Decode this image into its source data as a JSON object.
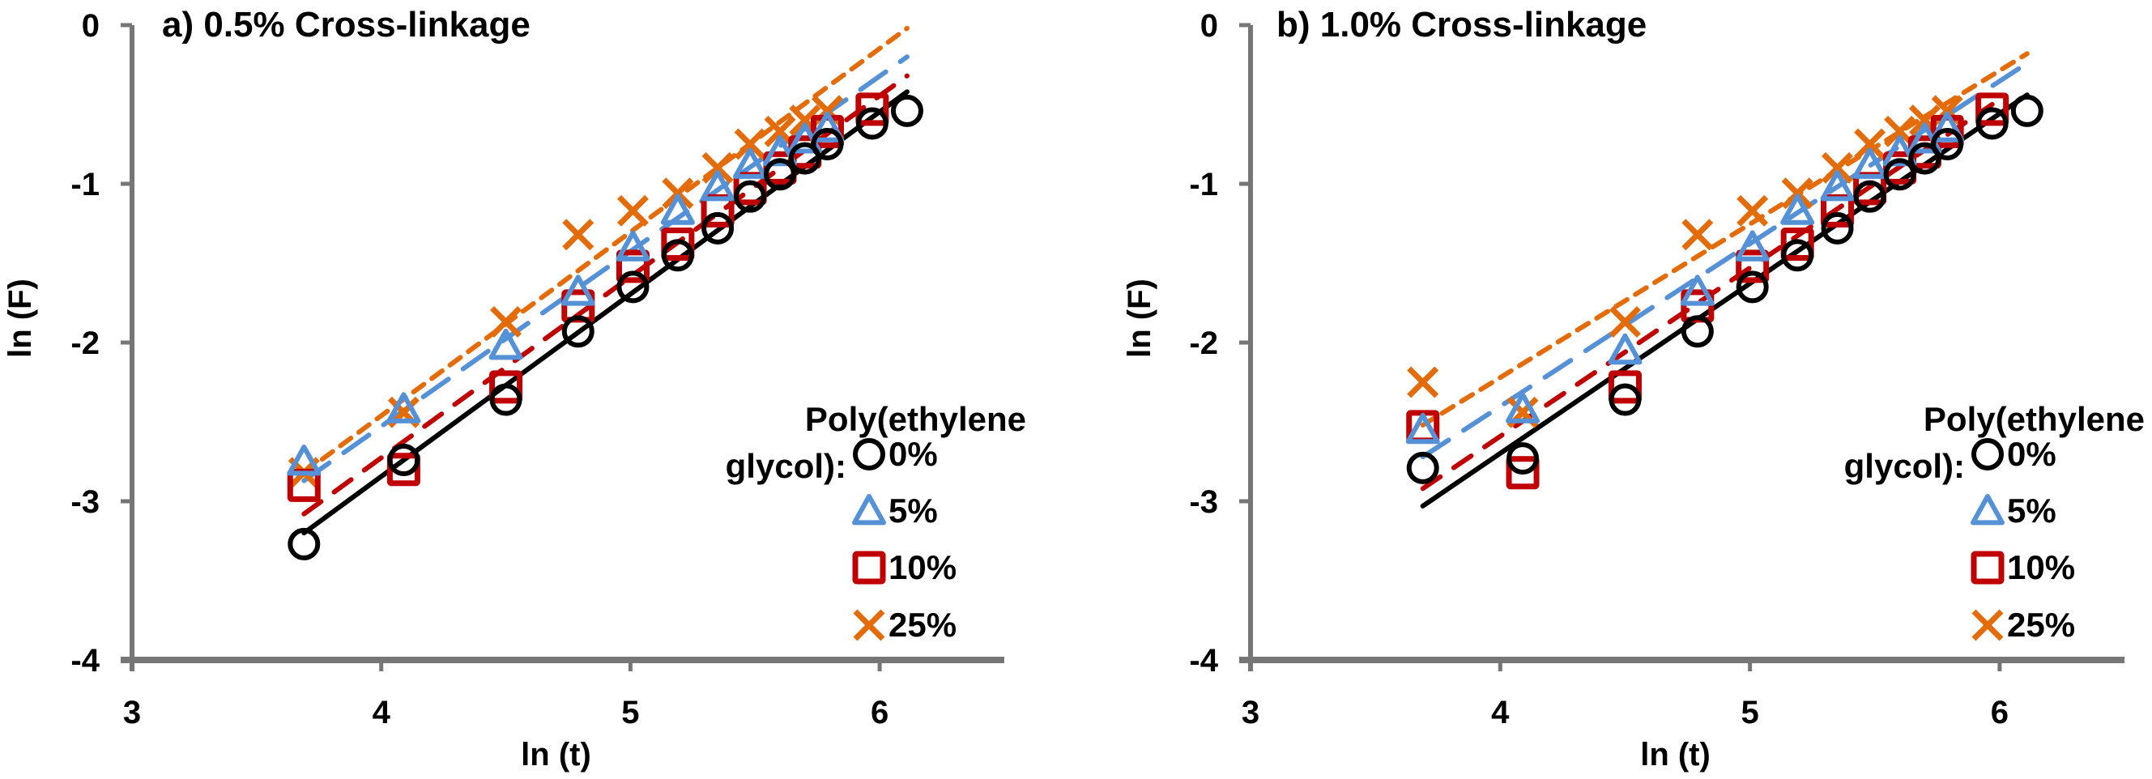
{
  "chart_data": [
    {
      "type": "scatter",
      "title": "a) 0.5% Cross-linkage",
      "xlabel": "ln (t)",
      "ylabel": "ln (F)",
      "xlim": [
        3,
        6.5
      ],
      "ylim": [
        -4,
        0
      ],
      "xticks": [
        3,
        4,
        5,
        6
      ],
      "yticks": [
        0,
        -1,
        -2,
        -3,
        -4
      ],
      "grid": false,
      "legend": {
        "title_line1": "Poly(ethylene",
        "title_line2": "glycol):",
        "placement": "bottom-right"
      },
      "series": [
        {
          "name": "0%",
          "marker": "circle",
          "color": "#000000",
          "line": "solid",
          "x": [
            3.69,
            4.09,
            4.5,
            4.79,
            5.01,
            5.19,
            5.35,
            5.48,
            5.6,
            5.7,
            5.79,
            5.97,
            6.11
          ],
          "y": [
            -3.27,
            -2.74,
            -2.36,
            -1.93,
            -1.65,
            -1.45,
            -1.28,
            -1.08,
            -0.94,
            -0.84,
            -0.75,
            -0.62,
            -0.54
          ],
          "fit": {
            "x": [
              3.69,
              6.11
            ],
            "y": [
              -3.2,
              -0.42
            ]
          }
        },
        {
          "name": "5%",
          "marker": "triangle",
          "color": "#5591D6",
          "line": "long-dash",
          "x": [
            3.69,
            4.09,
            4.5,
            4.79,
            5.01,
            5.19,
            5.35,
            5.48,
            5.6,
            5.7,
            5.79
          ],
          "y": [
            -2.75,
            -2.42,
            -2.02,
            -1.68,
            -1.4,
            -1.17,
            -1.02,
            -0.88,
            -0.8,
            -0.72,
            -0.65
          ],
          "fit": {
            "x": [
              3.69,
              6.11
            ],
            "y": [
              -2.87,
              -0.2
            ]
          }
        },
        {
          "name": "10%",
          "marker": "square",
          "color": "#C00000",
          "line": "dash",
          "x": [
            3.69,
            4.09,
            4.5,
            4.79,
            5.01,
            5.19,
            5.35,
            5.48,
            5.6,
            5.7,
            5.79,
            5.97
          ],
          "y": [
            -2.9,
            -2.8,
            -2.28,
            -1.77,
            -1.52,
            -1.38,
            -1.17,
            -1.03,
            -0.9,
            -0.8,
            -0.67,
            -0.53
          ],
          "fit": {
            "x": [
              3.69,
              6.11
            ],
            "y": [
              -3.08,
              -0.32
            ]
          }
        },
        {
          "name": "25%",
          "marker": "x",
          "color": "#E36C09",
          "line": "short-dash",
          "x": [
            3.69,
            4.09,
            4.5,
            4.79,
            5.01,
            5.19,
            5.35,
            5.48,
            5.6,
            5.7,
            5.79
          ],
          "y": [
            -2.82,
            -2.44,
            -1.87,
            -1.32,
            -1.17,
            -1.06,
            -0.9,
            -0.75,
            -0.67,
            -0.6,
            -0.54
          ],
          "fit": {
            "x": [
              3.69,
              6.11
            ],
            "y": [
              -2.82,
              -0.02
            ]
          }
        }
      ]
    },
    {
      "type": "scatter",
      "title": "b) 1.0% Cross-linkage",
      "xlabel": "ln (t)",
      "ylabel": "ln (F)",
      "xlim": [
        3,
        6.5
      ],
      "ylim": [
        -4,
        0
      ],
      "xticks": [
        3,
        4,
        5,
        6
      ],
      "yticks": [
        0,
        -1,
        -2,
        -3,
        -4
      ],
      "grid": false,
      "legend": {
        "title_line1": "Poly(ethylene",
        "title_line2": "glycol):",
        "placement": "bottom-right"
      },
      "series": [
        {
          "name": "0%",
          "marker": "circle",
          "color": "#000000",
          "line": "solid",
          "x": [
            3.69,
            4.09,
            4.5,
            4.79,
            5.01,
            5.19,
            5.35,
            5.48,
            5.6,
            5.7,
            5.79,
            5.97,
            6.11
          ],
          "y": [
            -2.79,
            -2.73,
            -2.36,
            -1.93,
            -1.65,
            -1.45,
            -1.28,
            -1.08,
            -0.94,
            -0.84,
            -0.75,
            -0.62,
            -0.54
          ],
          "fit": {
            "x": [
              3.69,
              6.11
            ],
            "y": [
              -3.03,
              -0.44
            ]
          }
        },
        {
          "name": "5%",
          "marker": "triangle",
          "color": "#5591D6",
          "line": "long-dash",
          "x": [
            3.69,
            4.09,
            4.5,
            4.79,
            5.01,
            5.19,
            5.35,
            5.48,
            5.6,
            5.7,
            5.79
          ],
          "y": [
            -2.55,
            -2.42,
            -2.05,
            -1.68,
            -1.4,
            -1.17,
            -1.02,
            -0.88,
            -0.8,
            -0.72,
            -0.65
          ],
          "fit": {
            "x": [
              3.69,
              6.11
            ],
            "y": [
              -2.72,
              -0.24
            ]
          }
        },
        {
          "name": "10%",
          "marker": "square",
          "color": "#C00000",
          "line": "dash",
          "x": [
            3.69,
            4.09,
            4.5,
            4.79,
            5.01,
            5.19,
            5.35,
            5.48,
            5.6,
            5.7,
            5.79,
            5.97
          ],
          "y": [
            -2.53,
            -2.82,
            -2.28,
            -1.77,
            -1.52,
            -1.38,
            -1.17,
            -1.03,
            -0.9,
            -0.8,
            -0.67,
            -0.53
          ],
          "fit": {
            "x": [
              3.69,
              5.97
            ],
            "y": [
              -2.92,
              -0.5
            ]
          }
        },
        {
          "name": "25%",
          "marker": "x",
          "color": "#E36C09",
          "line": "short-dash",
          "x": [
            3.69,
            4.09,
            4.5,
            4.79,
            5.01,
            5.19,
            5.35,
            5.48,
            5.6,
            5.7,
            5.79
          ],
          "y": [
            -2.25,
            -2.44,
            -1.87,
            -1.32,
            -1.17,
            -1.06,
            -0.9,
            -0.75,
            -0.67,
            -0.6,
            -0.54
          ],
          "fit": {
            "x": [
              3.69,
              6.11
            ],
            "y": [
              -2.52,
              -0.18
            ]
          }
        }
      ]
    }
  ],
  "axis_color": "#767676"
}
